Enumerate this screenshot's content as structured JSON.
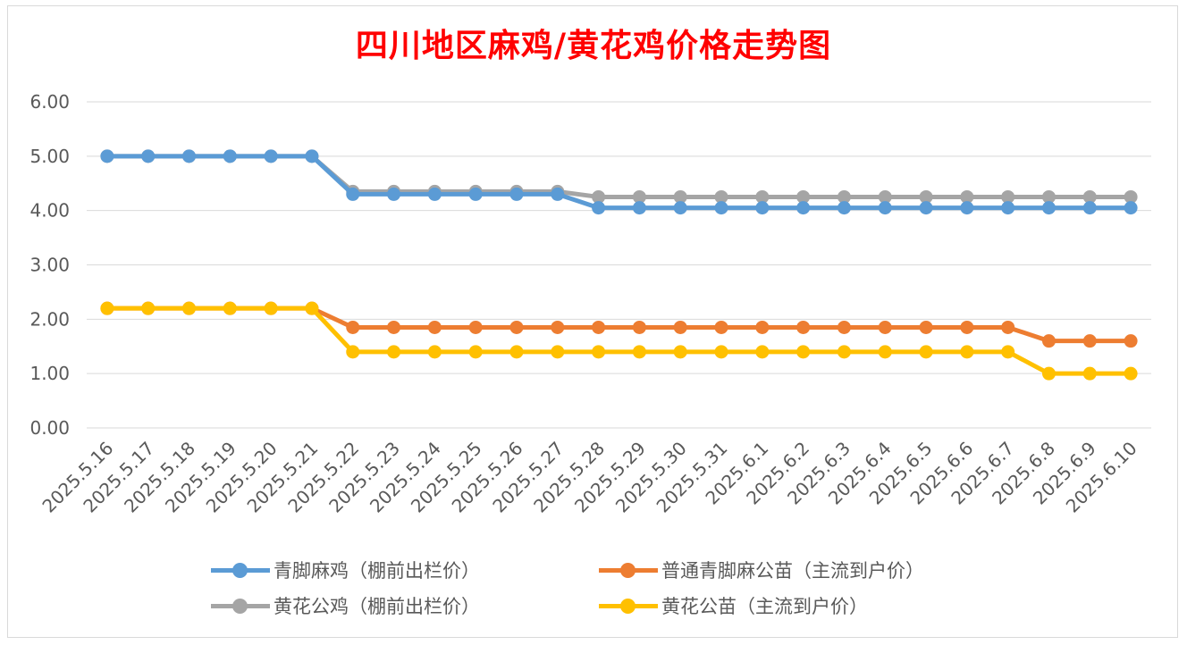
{
  "chart_data": {
    "type": "line",
    "title": "四川地区麻鸡/黄花鸡价格走势图",
    "categories": [
      "2025.5.16",
      "2025.5.17",
      "2025.5.18",
      "2025.5.19",
      "2025.5.20",
      "2025.5.21",
      "2025.5.22",
      "2025.5.23",
      "2025.5.24",
      "2025.5.25",
      "2025.5.26",
      "2025.5.27",
      "2025.5.28",
      "2025.5.29",
      "2025.5.30",
      "2025.5.31",
      "2025.6.1",
      "2025.6.2",
      "2025.6.3",
      "2025.6.4",
      "2025.6.5",
      "2025.6.6",
      "2025.6.7",
      "2025.6.8",
      "2025.6.9",
      "2025.6.10"
    ],
    "yticks": [
      "0.00",
      "1.00",
      "2.00",
      "3.00",
      "4.00",
      "5.00",
      "6.00"
    ],
    "ylim": [
      0,
      6
    ],
    "grid": true,
    "legend_position": "bottom",
    "series": [
      {
        "name": "青脚麻鸡（棚前出栏价）",
        "color": "#5b9bd5",
        "values": [
          5,
          5,
          5,
          5,
          5,
          5,
          4.3,
          4.3,
          4.3,
          4.3,
          4.3,
          4.3,
          4.05,
          4.05,
          4.05,
          4.05,
          4.05,
          4.05,
          4.05,
          4.05,
          4.05,
          4.05,
          4.05,
          4.05,
          4.05,
          4.05
        ]
      },
      {
        "name": "普通青脚麻公苗（主流到户价）",
        "color": "#ed7d31",
        "values": [
          2.2,
          2.2,
          2.2,
          2.2,
          2.2,
          2.2,
          1.85,
          1.85,
          1.85,
          1.85,
          1.85,
          1.85,
          1.85,
          1.85,
          1.85,
          1.85,
          1.85,
          1.85,
          1.85,
          1.85,
          1.85,
          1.85,
          1.85,
          1.6,
          1.6,
          1.6
        ]
      },
      {
        "name": "黄花公鸡（棚前出栏价）",
        "color": "#a5a5a5",
        "values": [
          5,
          5,
          5,
          5,
          5,
          5,
          4.35,
          4.35,
          4.35,
          4.35,
          4.35,
          4.35,
          4.25,
          4.25,
          4.25,
          4.25,
          4.25,
          4.25,
          4.25,
          4.25,
          4.25,
          4.25,
          4.25,
          4.25,
          4.25,
          4.25
        ]
      },
      {
        "name": "黄花公苗（主流到户价）",
        "color": "#ffc000",
        "values": [
          2.2,
          2.2,
          2.2,
          2.2,
          2.2,
          2.2,
          1.4,
          1.4,
          1.4,
          1.4,
          1.4,
          1.4,
          1.4,
          1.4,
          1.4,
          1.4,
          1.4,
          1.4,
          1.4,
          1.4,
          1.4,
          1.4,
          1.4,
          1.0,
          1.0,
          1.0
        ]
      }
    ]
  }
}
